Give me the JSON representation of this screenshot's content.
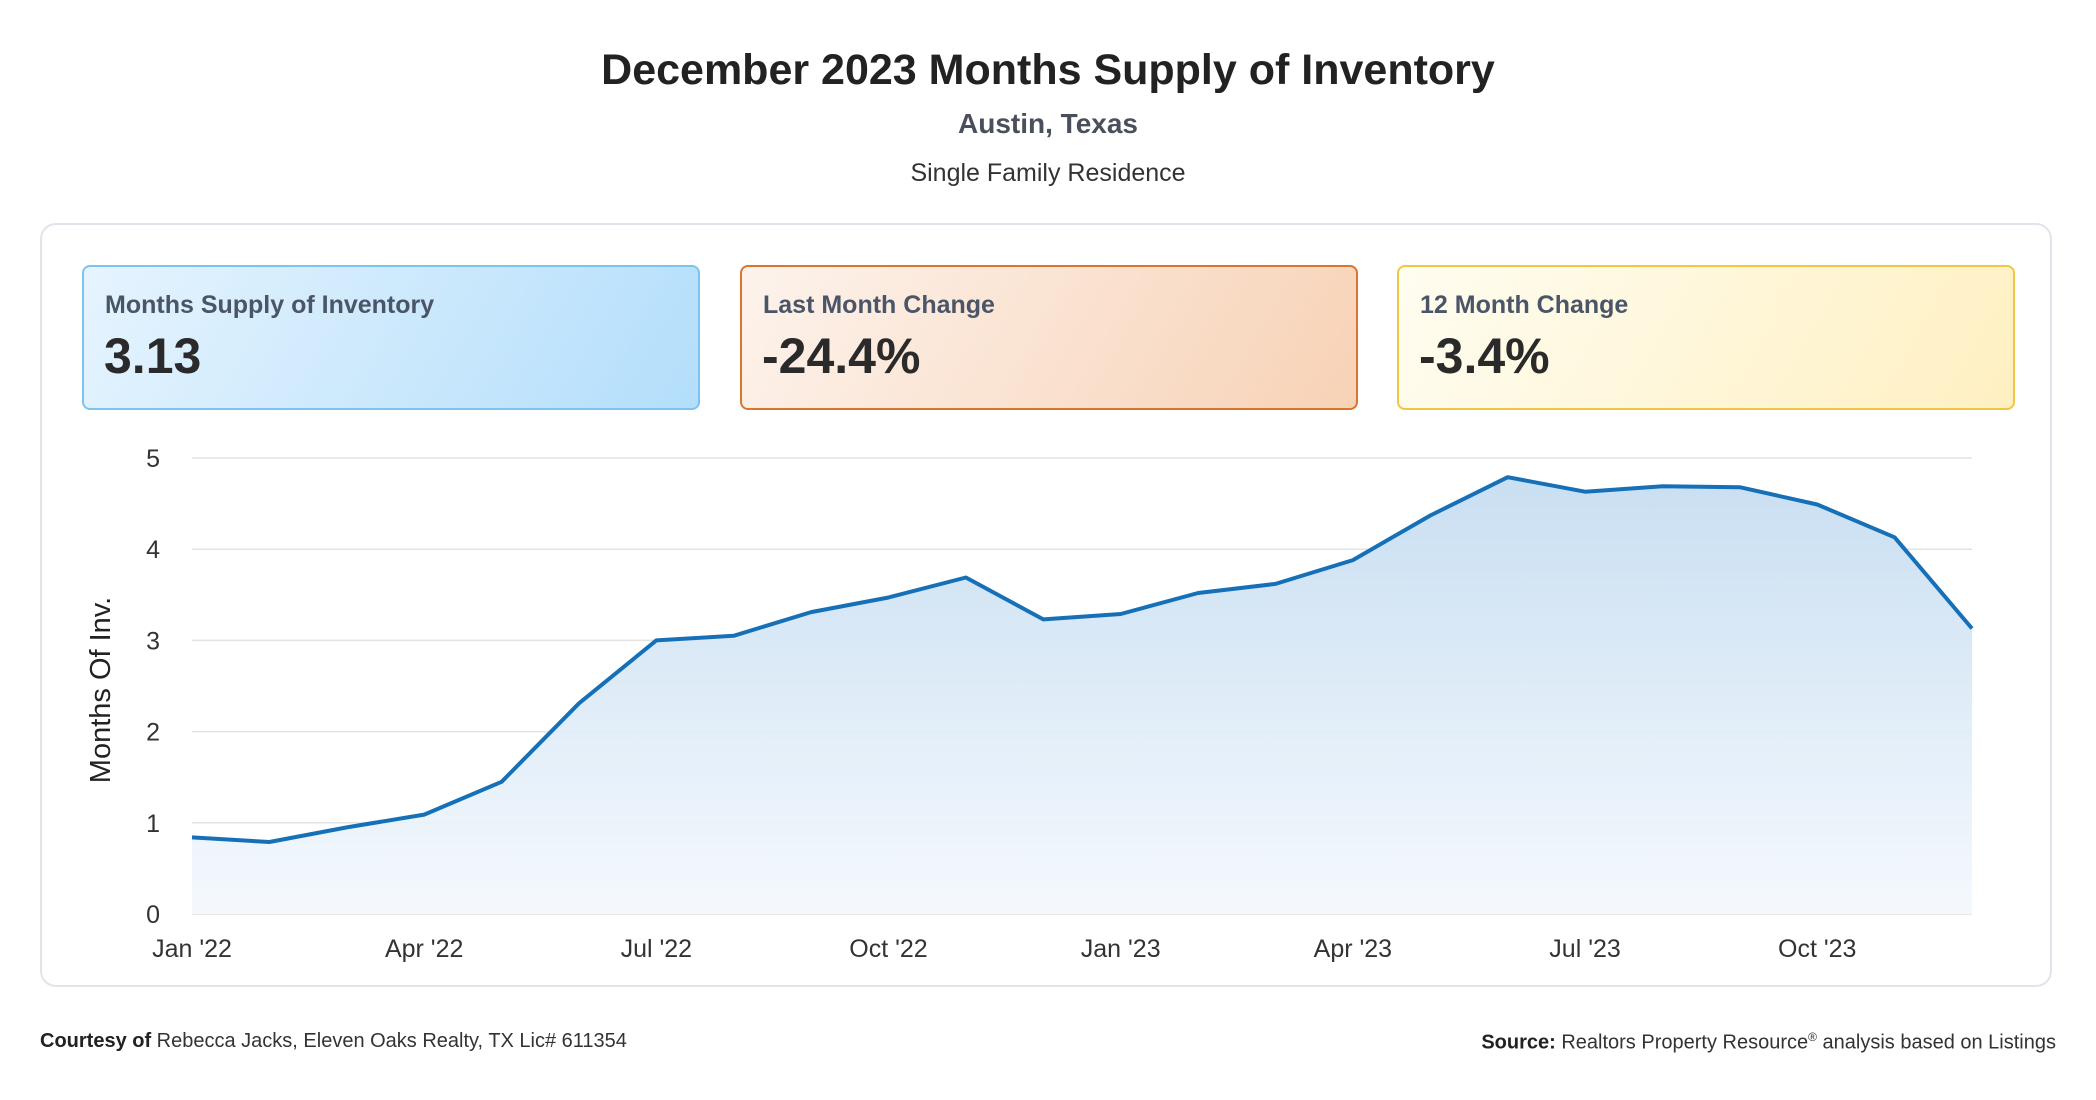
{
  "header": {
    "title": "December 2023 Months Supply of Inventory",
    "location": "Austin, Texas",
    "property_type": "Single Family Residence"
  },
  "cards": {
    "supply": {
      "label": "Months Supply of Inventory",
      "value": "3.13"
    },
    "last_month": {
      "label": "Last Month Change",
      "value": "-24.4%"
    },
    "twelve_month": {
      "label": "12 Month Change",
      "value": "-3.4%"
    }
  },
  "colors": {
    "line": "#1570b8",
    "area_top": "#cfe3f3",
    "grid": "#e3e3e3",
    "card_blue_border": "#7cc4ef",
    "card_orange_border": "#d9752f",
    "card_yellow_border": "#f2c645"
  },
  "chart_data": {
    "type": "area",
    "title": "",
    "xlabel": "",
    "ylabel": "Months Of Inv.",
    "ylim": [
      0,
      5
    ],
    "yticks": [
      "0",
      "1",
      "2",
      "3",
      "4",
      "5"
    ],
    "x": [
      "Jan '22",
      "Feb '22",
      "Mar '22",
      "Apr '22",
      "May '22",
      "Jun '22",
      "Jul '22",
      "Aug '22",
      "Sep '22",
      "Oct '22",
      "Nov '22",
      "Dec '22",
      "Jan '23",
      "Feb '23",
      "Mar '23",
      "Apr '23",
      "May '23",
      "Jun '23",
      "Jul '23",
      "Aug '23",
      "Sep '23",
      "Oct '23",
      "Nov '23",
      "Dec '23"
    ],
    "xtick_labels": [
      "Jan '22",
      "Apr '22",
      "Jul '22",
      "Oct '22",
      "Jan '23",
      "Apr '23",
      "Jul '23",
      "Oct '23"
    ],
    "series": [
      {
        "values": [
          0.84,
          0.79,
          0.95,
          1.09,
          1.45,
          2.31,
          3.0,
          3.05,
          3.31,
          3.47,
          3.69,
          3.23,
          3.29,
          3.52,
          3.62,
          3.88,
          4.37,
          4.79,
          4.63,
          4.69,
          4.68,
          4.49,
          4.13,
          3.13
        ]
      }
    ],
    "grid": true,
    "legend": "none"
  },
  "footer": {
    "courtesy_bold": "Courtesy of",
    "courtesy_text": " Rebecca Jacks, Eleven Oaks Realty, TX Lic# 611354",
    "source_bold": "Source:",
    "source_text": " Realtors Property Resource",
    "source_reg": "®",
    "source_tail": " analysis based on Listings"
  }
}
